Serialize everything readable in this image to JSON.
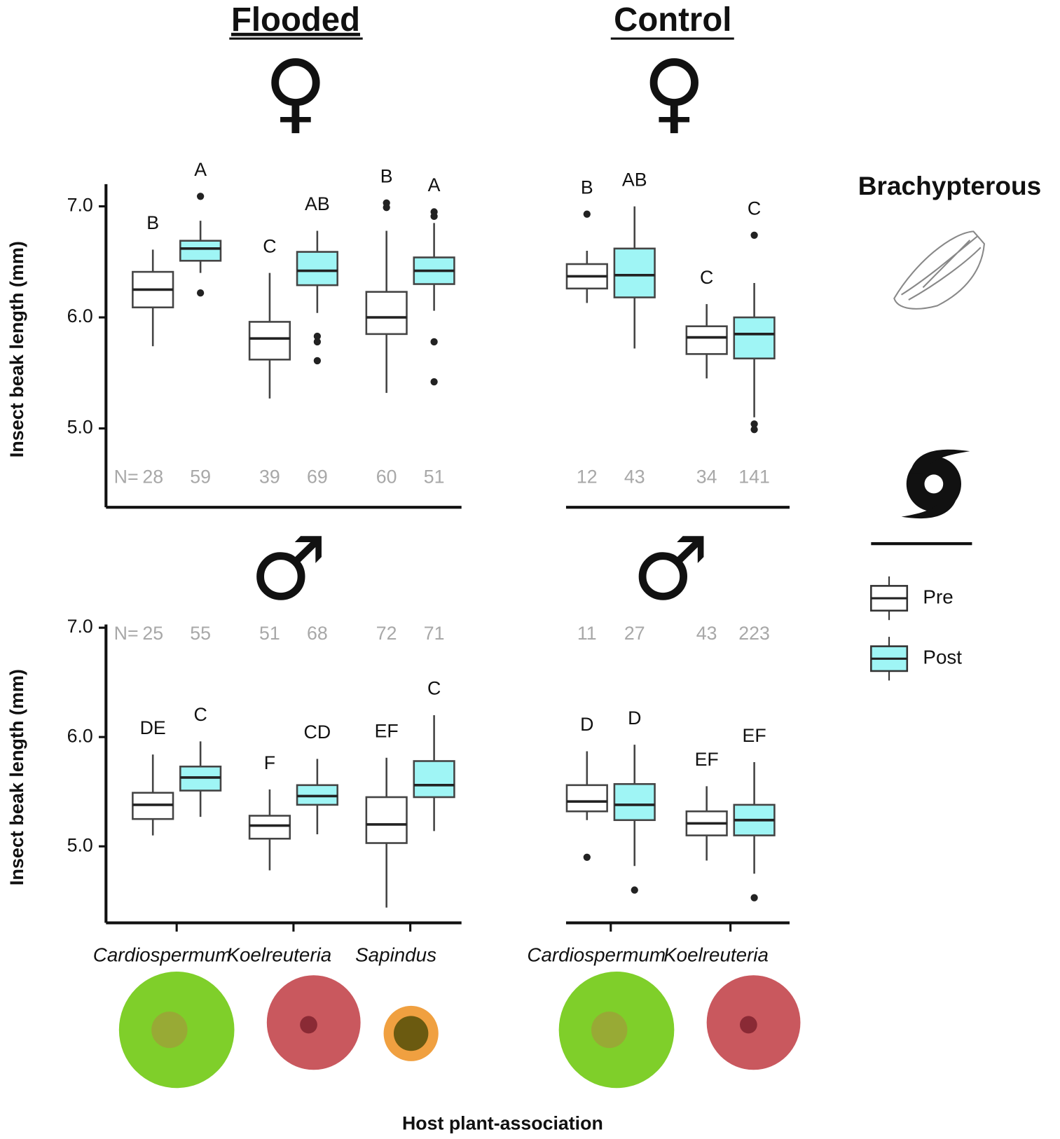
{
  "columns": [
    "Flooded",
    "Control"
  ],
  "wing_label": "Brachypterous",
  "x_label": "Host plant-association",
  "chart_data": [
    {
      "type": "box",
      "sex": "♀",
      "ylabel": "Insect beak length (mm)",
      "n_prefix": "N=",
      "ylim": [
        4.29,
        7.2
      ],
      "yticks": [
        {
          "value": 5,
          "label": "5.0"
        },
        {
          "value": 6,
          "label": "6.0"
        },
        {
          "value": 7,
          "label": "7.0"
        }
      ],
      "series": [
        {
          "name": "Pre",
          "color": "#ffffff",
          "letters": [
            "B",
            "C",
            "B"
          ],
          "n": [
            28,
            39,
            60
          ],
          "boxes": [
            {
              "min": 5.74,
              "q1": 6.09,
              "median": 6.25,
              "q3": 6.41,
              "max": 6.61,
              "outliers": []
            },
            {
              "min": 5.27,
              "q1": 5.62,
              "median": 5.81,
              "q3": 5.96,
              "max": 6.4,
              "outliers": []
            },
            {
              "min": 5.32,
              "q1": 5.85,
              "median": 6.0,
              "q3": 6.23,
              "max": 6.78,
              "outliers": [
                7.03,
                6.99
              ]
            }
          ]
        },
        {
          "name": "Post",
          "color": "#9ff5f5",
          "letters": [
            "A",
            "AB",
            "A"
          ],
          "n": [
            59,
            69,
            51
          ],
          "boxes": [
            {
              "min": 6.4,
              "q1": 6.51,
              "median": 6.62,
              "q3": 6.69,
              "max": 6.87,
              "outliers": [
                7.09,
                6.22
              ]
            },
            {
              "min": 6.04,
              "q1": 6.29,
              "median": 6.42,
              "q3": 6.59,
              "max": 6.78,
              "outliers": [
                5.83,
                5.78,
                5.61
              ]
            },
            {
              "min": 6.06,
              "q1": 6.3,
              "median": 6.42,
              "q3": 6.54,
              "max": 6.85,
              "outliers": [
                6.95,
                6.91,
                5.78,
                5.42
              ]
            }
          ]
        }
      ]
    },
    {
      "type": "box",
      "sex": "♀",
      "ylim": [
        4.29,
        7.2
      ],
      "series": [
        {
          "name": "Pre",
          "color": "#ffffff",
          "letters": [
            "B",
            "C"
          ],
          "n": [
            12,
            34
          ],
          "boxes": [
            {
              "min": 6.13,
              "q1": 6.26,
              "median": 6.37,
              "q3": 6.48,
              "max": 6.6,
              "outliers": [
                6.93
              ]
            },
            {
              "min": 5.45,
              "q1": 5.67,
              "median": 5.82,
              "q3": 5.92,
              "max": 6.12,
              "outliers": []
            }
          ]
        },
        {
          "name": "Post",
          "color": "#9ff5f5",
          "letters": [
            "AB",
            "C"
          ],
          "n": [
            43,
            141
          ],
          "boxes": [
            {
              "min": 5.72,
              "q1": 6.18,
              "median": 6.38,
              "q3": 6.62,
              "max": 7.0,
              "outliers": []
            },
            {
              "min": 5.1,
              "q1": 5.63,
              "median": 5.85,
              "q3": 6.0,
              "max": 6.31,
              "outliers": [
                6.74,
                5.04,
                4.99
              ]
            }
          ]
        }
      ]
    },
    {
      "type": "box",
      "sex": "♂",
      "ylabel": "Insect beak length (mm)",
      "n_prefix": "N=",
      "ylim": [
        4.3,
        7.03
      ],
      "yticks": [
        {
          "value": 5,
          "label": "5.0"
        },
        {
          "value": 6,
          "label": "6.0"
        },
        {
          "value": 7,
          "label": "7.0"
        }
      ],
      "categories": [
        "Cardiospermum",
        "Koelreuteria",
        "Sapindus"
      ],
      "series": [
        {
          "name": "Pre",
          "color": "#ffffff",
          "letters": [
            "DE",
            "F",
            "EF"
          ],
          "n": [
            25,
            51,
            72
          ],
          "boxes": [
            {
              "min": 5.1,
              "q1": 5.25,
              "median": 5.38,
              "q3": 5.49,
              "max": 5.84,
              "outliers": []
            },
            {
              "min": 4.78,
              "q1": 5.07,
              "median": 5.19,
              "q3": 5.28,
              "max": 5.52,
              "outliers": []
            },
            {
              "min": 4.44,
              "q1": 5.03,
              "median": 5.2,
              "q3": 5.45,
              "max": 5.81,
              "outliers": []
            }
          ]
        },
        {
          "name": "Post",
          "color": "#9ff5f5",
          "letters": [
            "C",
            "CD",
            "C"
          ],
          "n": [
            55,
            68,
            71
          ],
          "boxes": [
            {
              "min": 5.27,
              "q1": 5.51,
              "median": 5.63,
              "q3": 5.73,
              "max": 5.96,
              "outliers": []
            },
            {
              "min": 5.11,
              "q1": 5.38,
              "median": 5.46,
              "q3": 5.56,
              "max": 5.8,
              "outliers": []
            },
            {
              "min": 5.14,
              "q1": 5.45,
              "median": 5.56,
              "q3": 5.78,
              "max": 6.2,
              "outliers": []
            }
          ]
        }
      ]
    },
    {
      "type": "box",
      "sex": "♂",
      "ylim": [
        4.3,
        7.03
      ],
      "categories": [
        "Cardiospermum",
        "Koelreuteria"
      ],
      "series": [
        {
          "name": "Pre",
          "color": "#ffffff",
          "letters": [
            "D",
            "EF"
          ],
          "n": [
            11,
            43
          ],
          "boxes": [
            {
              "min": 5.24,
              "q1": 5.32,
              "median": 5.41,
              "q3": 5.56,
              "max": 5.87,
              "outliers": [
                4.9
              ]
            },
            {
              "min": 4.87,
              "q1": 5.1,
              "median": 5.21,
              "q3": 5.32,
              "max": 5.55,
              "outliers": []
            }
          ]
        },
        {
          "name": "Post",
          "color": "#9ff5f5",
          "letters": [
            "D",
            "EF"
          ],
          "n": [
            27,
            223
          ],
          "boxes": [
            {
              "min": 4.82,
              "q1": 5.24,
              "median": 5.38,
              "q3": 5.57,
              "max": 5.93,
              "outliers": [
                4.6
              ]
            },
            {
              "min": 4.75,
              "q1": 5.1,
              "median": 5.24,
              "q3": 5.38,
              "max": 5.77,
              "outliers": [
                4.53
              ]
            }
          ]
        }
      ]
    }
  ]
}
